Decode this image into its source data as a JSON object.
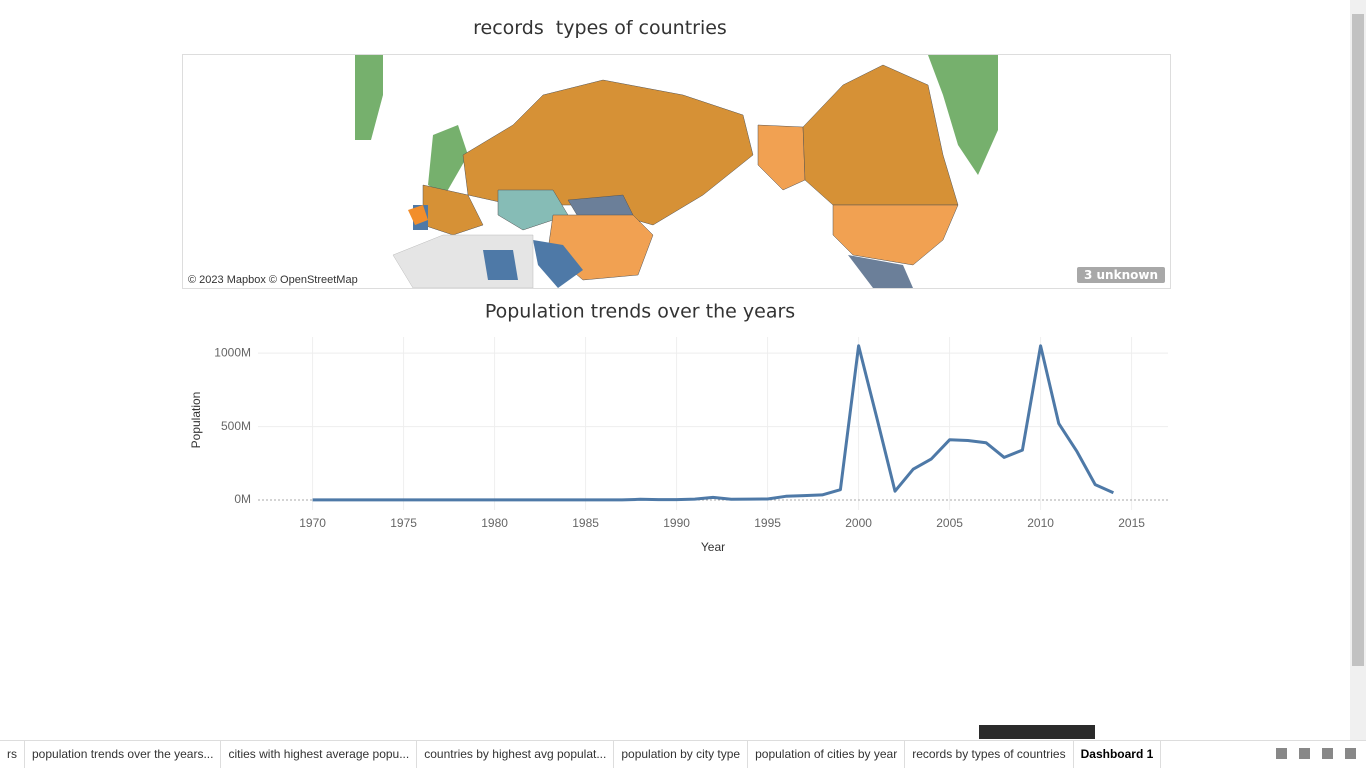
{
  "map": {
    "title": "records  types of countries",
    "attribution": "© 2023 Mapbox © OpenStreetMap",
    "unknown_badge": "3 unknown"
  },
  "chart_data": {
    "type": "line",
    "title": "Population trends over the years",
    "x_label": "Year",
    "y_label": "Population",
    "color": "#4e79a7",
    "grid": true,
    "x": [
      1970,
      1971,
      1972,
      1973,
      1974,
      1975,
      1976,
      1977,
      1978,
      1979,
      1980,
      1981,
      1982,
      1983,
      1984,
      1985,
      1986,
      1987,
      1988,
      1989,
      1990,
      1991,
      1992,
      1993,
      1994,
      1995,
      1996,
      1997,
      1998,
      1999,
      2000,
      2001,
      2002,
      2003,
      2004,
      2005,
      2006,
      2007,
      2008,
      2009,
      2010,
      2011,
      2012,
      2013,
      2014
    ],
    "values": [
      1,
      1,
      1,
      1,
      1,
      1,
      1,
      1,
      1,
      1,
      1,
      1,
      1,
      1,
      1,
      1,
      1,
      1,
      5,
      3,
      3,
      6,
      18,
      5,
      6,
      7,
      25,
      30,
      35,
      70,
      1050,
      560,
      60,
      210,
      280,
      410,
      405,
      390,
      290,
      340,
      1050,
      520,
      330,
      105,
      50
    ],
    "xlim": [
      1967,
      2017
    ],
    "xticks": [
      1970,
      1975,
      1980,
      1985,
      1990,
      1995,
      2000,
      2005,
      2010,
      2015
    ],
    "ylim": [
      -68,
      1110
    ],
    "yticks": [
      {
        "value": 0,
        "label": "0M"
      },
      {
        "value": 500,
        "label": "500M"
      },
      {
        "value": 1000,
        "label": "1000M"
      }
    ]
  },
  "tabs": [
    "rs",
    "population trends over the years...",
    "cities with highest average popu...",
    "countries by highest avg populat...",
    "population by city type",
    "population of cities by year",
    "records by types of countries",
    "Dashboard 1"
  ]
}
